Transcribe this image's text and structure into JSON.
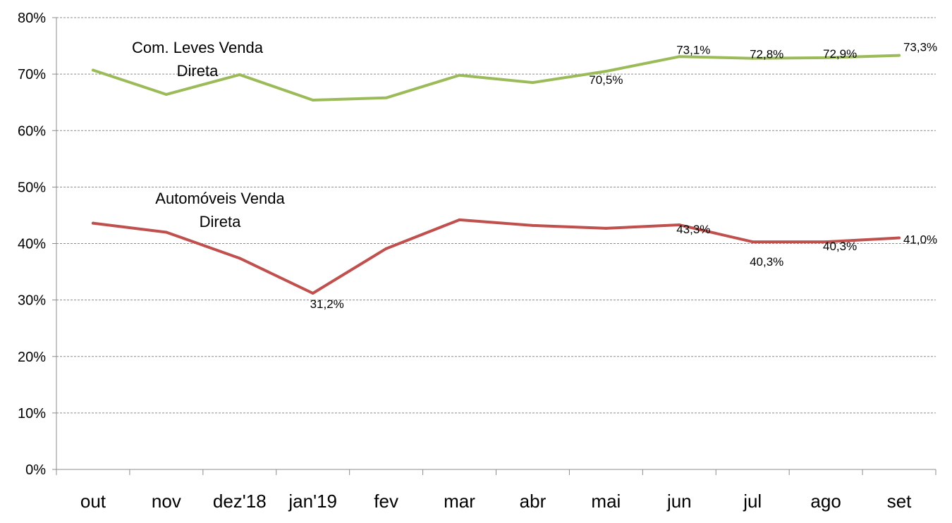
{
  "chart_data": {
    "type": "line",
    "categories": [
      "out",
      "nov",
      "dez'18",
      "jan'19",
      "fev",
      "mar",
      "abr",
      "mai",
      "jun",
      "jul",
      "ago",
      "set"
    ],
    "ylim": [
      0,
      80
    ],
    "yticks": [
      "0%",
      "10%",
      "20%",
      "30%",
      "40%",
      "50%",
      "60%",
      "70%",
      "80%"
    ],
    "grid": true,
    "series": [
      {
        "name_lines": [
          "Com. Leves Venda",
          "Direta"
        ],
        "color": "#9bbb59",
        "values": [
          70.7,
          66.4,
          69.9,
          65.4,
          65.8,
          69.8,
          68.5,
          70.5,
          73.1,
          72.8,
          72.9,
          73.3
        ],
        "data_labels": [
          "",
          "",
          "",
          "",
          "",
          "",
          "",
          "70,5%",
          "73,1%",
          "72,8%",
          "72,9%",
          "73,3%"
        ]
      },
      {
        "name_lines": [
          "Automóveis Venda",
          "Direta"
        ],
        "color": "#c0504d",
        "values": [
          43.6,
          42.0,
          37.4,
          31.2,
          39.1,
          44.2,
          43.2,
          42.7,
          43.3,
          40.3,
          40.3,
          41.0
        ],
        "data_labels": [
          "",
          "",
          "",
          "31,2%",
          "",
          "",
          "",
          "",
          "43,3%",
          "40,3%",
          "40,3%",
          "41,0%"
        ]
      }
    ]
  }
}
